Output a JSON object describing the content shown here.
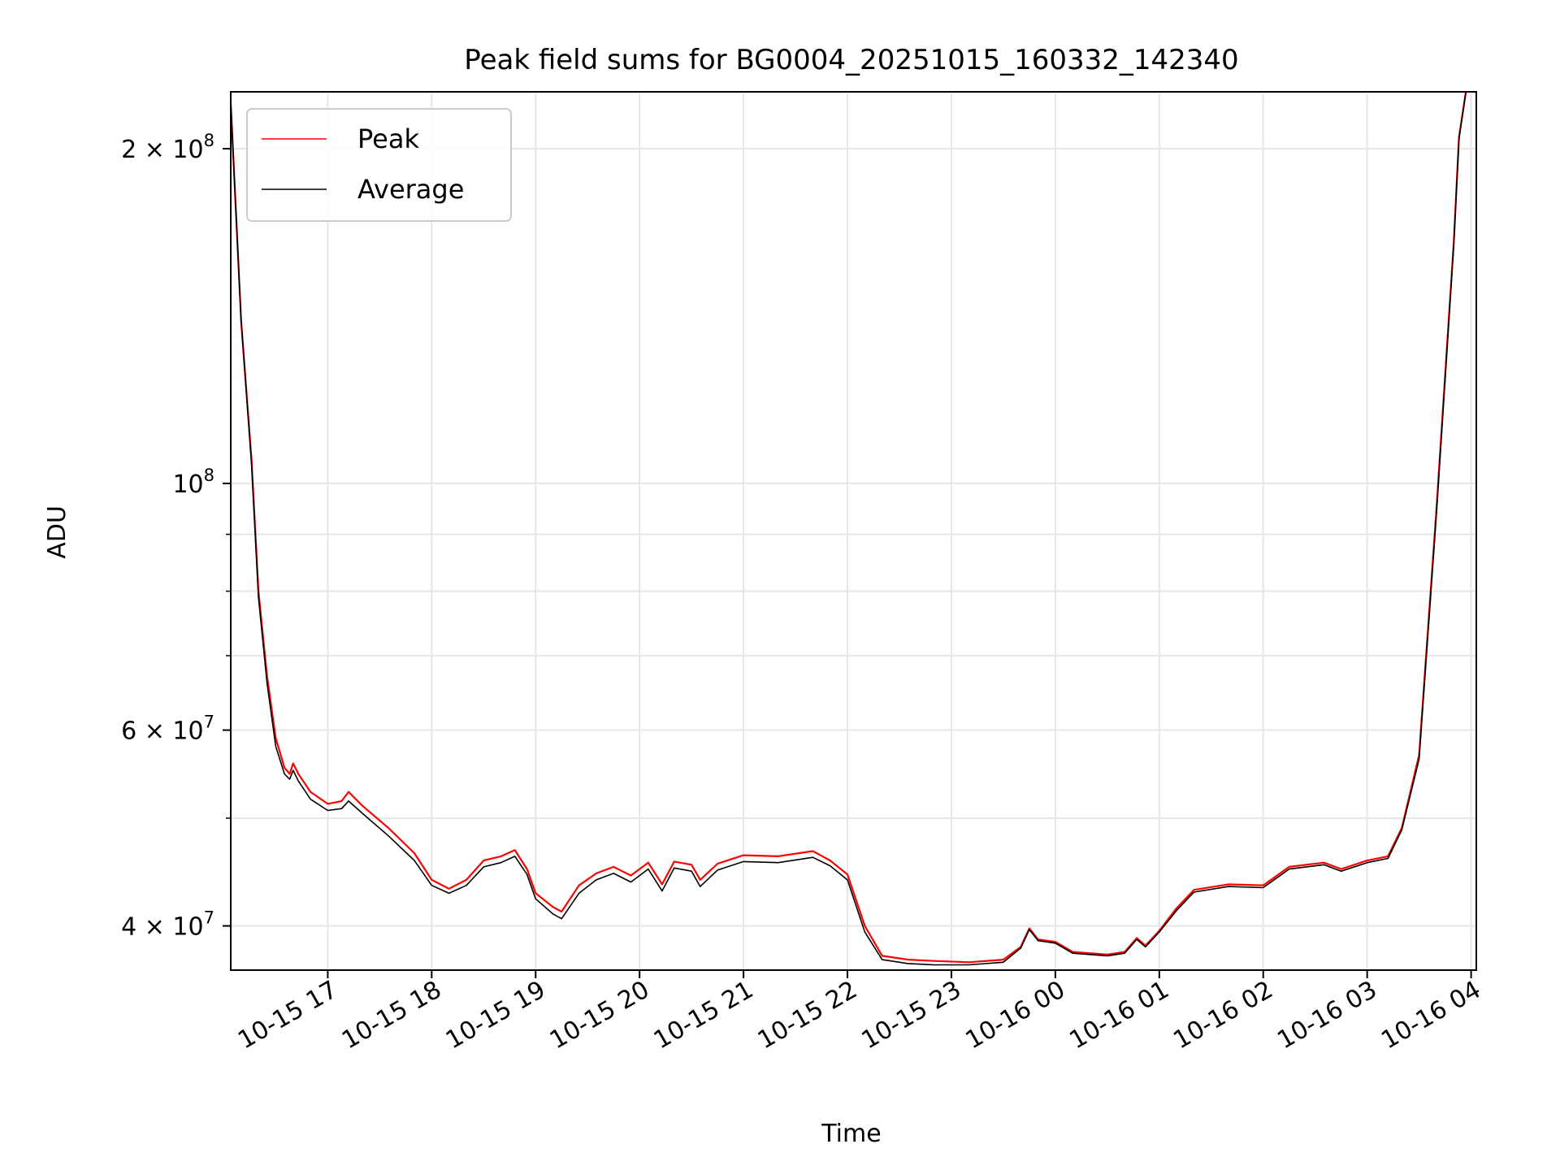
{
  "chart_data": {
    "type": "line",
    "title": "Peak field sums for BG0004_20251015_160332_142340",
    "xlabel": "Time",
    "ylabel": "ADU",
    "yscale": "log",
    "grid": true,
    "legend_position": "upper left",
    "xlim": [
      "2025-10-15T16:04",
      "2025-10-16T04:03"
    ],
    "ylim": [
      36500000,
      225000000
    ],
    "x_ticks": [
      {
        "t": "2025-10-15T17:00",
        "label": "10-15 17"
      },
      {
        "t": "2025-10-15T18:00",
        "label": "10-15 18"
      },
      {
        "t": "2025-10-15T19:00",
        "label": "10-15 19"
      },
      {
        "t": "2025-10-15T20:00",
        "label": "10-15 20"
      },
      {
        "t": "2025-10-15T21:00",
        "label": "10-15 21"
      },
      {
        "t": "2025-10-15T22:00",
        "label": "10-15 22"
      },
      {
        "t": "2025-10-15T23:00",
        "label": "10-15 23"
      },
      {
        "t": "2025-10-16T00:00",
        "label": "10-16 00"
      },
      {
        "t": "2025-10-16T01:00",
        "label": "10-16 01"
      },
      {
        "t": "2025-10-16T02:00",
        "label": "10-16 02"
      },
      {
        "t": "2025-10-16T03:00",
        "label": "10-16 03"
      },
      {
        "t": "2025-10-16T04:00",
        "label": "10-16 04"
      }
    ],
    "y_ticks_major": [
      {
        "v": 40000000,
        "label": "4 × 10",
        "exp": "7"
      },
      {
        "v": 60000000,
        "label": "6 × 10",
        "exp": "7"
      },
      {
        "v": 100000000,
        "label": "10",
        "exp": "8"
      },
      {
        "v": 200000000,
        "label": "2 × 10",
        "exp": "8"
      }
    ],
    "y_ticks_minor": [
      50000000,
      70000000,
      80000000,
      90000000
    ],
    "series": [
      {
        "name": "Peak",
        "color": "#ff0000",
        "data": [
          [
            "2025-10-15T16:04",
            220000000
          ],
          [
            "2025-10-15T16:10",
            140000000
          ],
          [
            "2025-10-15T16:16",
            105000000
          ],
          [
            "2025-10-15T16:20",
            80000000
          ],
          [
            "2025-10-15T16:25",
            67000000
          ],
          [
            "2025-10-15T16:30",
            59000000
          ],
          [
            "2025-10-15T16:35",
            55500000
          ],
          [
            "2025-10-15T16:38",
            54800000
          ],
          [
            "2025-10-15T16:40",
            56000000
          ],
          [
            "2025-10-15T16:43",
            54800000
          ],
          [
            "2025-10-15T16:50",
            52800000
          ],
          [
            "2025-10-15T17:00",
            51500000
          ],
          [
            "2025-10-15T17:08",
            51800000
          ],
          [
            "2025-10-15T17:12",
            52800000
          ],
          [
            "2025-10-15T17:20",
            51300000
          ],
          [
            "2025-10-15T17:35",
            49000000
          ],
          [
            "2025-10-15T17:50",
            46500000
          ],
          [
            "2025-10-15T18:00",
            44000000
          ],
          [
            "2025-10-15T18:10",
            43200000
          ],
          [
            "2025-10-15T18:20",
            44000000
          ],
          [
            "2025-10-15T18:30",
            45800000
          ],
          [
            "2025-10-15T18:40",
            46200000
          ],
          [
            "2025-10-15T18:48",
            46800000
          ],
          [
            "2025-10-15T18:55",
            45000000
          ],
          [
            "2025-10-15T19:00",
            42800000
          ],
          [
            "2025-10-15T19:10",
            41600000
          ],
          [
            "2025-10-15T19:15",
            41200000
          ],
          [
            "2025-10-15T19:25",
            43500000
          ],
          [
            "2025-10-15T19:35",
            44600000
          ],
          [
            "2025-10-15T19:45",
            45200000
          ],
          [
            "2025-10-15T19:55",
            44400000
          ],
          [
            "2025-10-15T20:05",
            45600000
          ],
          [
            "2025-10-15T20:13",
            43600000
          ],
          [
            "2025-10-15T20:20",
            45700000
          ],
          [
            "2025-10-15T20:30",
            45400000
          ],
          [
            "2025-10-15T20:35",
            44000000
          ],
          [
            "2025-10-15T20:45",
            45500000
          ],
          [
            "2025-10-15T21:00",
            46300000
          ],
          [
            "2025-10-15T21:20",
            46200000
          ],
          [
            "2025-10-15T21:40",
            46700000
          ],
          [
            "2025-10-15T21:50",
            45800000
          ],
          [
            "2025-10-15T22:00",
            44500000
          ],
          [
            "2025-10-15T22:10",
            40000000
          ],
          [
            "2025-10-15T22:20",
            37600000
          ],
          [
            "2025-10-15T22:35",
            37300000
          ],
          [
            "2025-10-15T22:50",
            37200000
          ],
          [
            "2025-10-15T23:10",
            37100000
          ],
          [
            "2025-10-15T23:30",
            37300000
          ],
          [
            "2025-10-15T23:40",
            38300000
          ],
          [
            "2025-10-15T23:45",
            39800000
          ],
          [
            "2025-10-15T23:50",
            38900000
          ],
          [
            "2025-10-16T00:00",
            38700000
          ],
          [
            "2025-10-16T00:10",
            37900000
          ],
          [
            "2025-10-16T00:30",
            37700000
          ],
          [
            "2025-10-16T00:40",
            37900000
          ],
          [
            "2025-10-16T00:47",
            39000000
          ],
          [
            "2025-10-16T00:52",
            38400000
          ],
          [
            "2025-10-16T01:00",
            39600000
          ],
          [
            "2025-10-16T01:10",
            41500000
          ],
          [
            "2025-10-16T01:20",
            43100000
          ],
          [
            "2025-10-16T01:40",
            43600000
          ],
          [
            "2025-10-16T02:00",
            43500000
          ],
          [
            "2025-10-16T02:15",
            45200000
          ],
          [
            "2025-10-16T02:35",
            45600000
          ],
          [
            "2025-10-16T02:45",
            45000000
          ],
          [
            "2025-10-16T03:00",
            45800000
          ],
          [
            "2025-10-16T03:12",
            46200000
          ],
          [
            "2025-10-16T03:20",
            49000000
          ],
          [
            "2025-10-16T03:30",
            57000000
          ],
          [
            "2025-10-16T03:40",
            95000000
          ],
          [
            "2025-10-16T03:50",
            165000000
          ],
          [
            "2025-10-16T03:53",
            205000000
          ],
          [
            "2025-10-16T03:57",
            225000000
          ]
        ]
      },
      {
        "name": "Average",
        "color": "#000000",
        "data": [
          [
            "2025-10-15T16:04",
            220000000
          ],
          [
            "2025-10-15T16:10",
            140000000
          ],
          [
            "2025-10-15T16:16",
            104000000
          ],
          [
            "2025-10-15T16:20",
            79000000
          ],
          [
            "2025-10-15T16:25",
            66000000
          ],
          [
            "2025-10-15T16:30",
            58000000
          ],
          [
            "2025-10-15T16:35",
            54800000
          ],
          [
            "2025-10-15T16:38",
            54200000
          ],
          [
            "2025-10-15T16:40",
            55200000
          ],
          [
            "2025-10-15T16:43",
            54000000
          ],
          [
            "2025-10-15T16:50",
            52000000
          ],
          [
            "2025-10-15T17:00",
            50800000
          ],
          [
            "2025-10-15T17:08",
            51000000
          ],
          [
            "2025-10-15T17:12",
            51800000
          ],
          [
            "2025-10-15T17:20",
            50500000
          ],
          [
            "2025-10-15T17:35",
            48200000
          ],
          [
            "2025-10-15T17:50",
            45800000
          ],
          [
            "2025-10-15T18:00",
            43500000
          ],
          [
            "2025-10-15T18:10",
            42800000
          ],
          [
            "2025-10-15T18:20",
            43500000
          ],
          [
            "2025-10-15T18:30",
            45200000
          ],
          [
            "2025-10-15T18:40",
            45600000
          ],
          [
            "2025-10-15T18:48",
            46200000
          ],
          [
            "2025-10-15T18:55",
            44500000
          ],
          [
            "2025-10-15T19:00",
            42300000
          ],
          [
            "2025-10-15T19:10",
            41000000
          ],
          [
            "2025-10-15T19:15",
            40600000
          ],
          [
            "2025-10-15T19:25",
            42800000
          ],
          [
            "2025-10-15T19:35",
            44000000
          ],
          [
            "2025-10-15T19:45",
            44600000
          ],
          [
            "2025-10-15T19:55",
            43800000
          ],
          [
            "2025-10-15T20:05",
            45000000
          ],
          [
            "2025-10-15T20:13",
            43000000
          ],
          [
            "2025-10-15T20:20",
            45100000
          ],
          [
            "2025-10-15T20:30",
            44800000
          ],
          [
            "2025-10-15T20:35",
            43400000
          ],
          [
            "2025-10-15T20:45",
            44900000
          ],
          [
            "2025-10-15T21:00",
            45700000
          ],
          [
            "2025-10-15T21:20",
            45600000
          ],
          [
            "2025-10-15T21:40",
            46100000
          ],
          [
            "2025-10-15T21:50",
            45300000
          ],
          [
            "2025-10-15T22:00",
            44000000
          ],
          [
            "2025-10-15T22:10",
            39500000
          ],
          [
            "2025-10-15T22:20",
            37300000
          ],
          [
            "2025-10-15T22:35",
            37000000
          ],
          [
            "2025-10-15T22:50",
            36900000
          ],
          [
            "2025-10-15T23:10",
            36900000
          ],
          [
            "2025-10-15T23:30",
            37100000
          ],
          [
            "2025-10-15T23:40",
            38200000
          ],
          [
            "2025-10-15T23:45",
            39700000
          ],
          [
            "2025-10-15T23:50",
            38800000
          ],
          [
            "2025-10-16T00:00",
            38600000
          ],
          [
            "2025-10-16T00:10",
            37800000
          ],
          [
            "2025-10-16T00:30",
            37600000
          ],
          [
            "2025-10-16T00:40",
            37800000
          ],
          [
            "2025-10-16T00:47",
            38900000
          ],
          [
            "2025-10-16T00:52",
            38300000
          ],
          [
            "2025-10-16T01:00",
            39500000
          ],
          [
            "2025-10-16T01:10",
            41300000
          ],
          [
            "2025-10-16T01:20",
            42900000
          ],
          [
            "2025-10-16T01:40",
            43400000
          ],
          [
            "2025-10-16T02:00",
            43300000
          ],
          [
            "2025-10-16T02:15",
            45000000
          ],
          [
            "2025-10-16T02:35",
            45400000
          ],
          [
            "2025-10-16T02:45",
            44800000
          ],
          [
            "2025-10-16T03:00",
            45600000
          ],
          [
            "2025-10-16T03:12",
            46000000
          ],
          [
            "2025-10-16T03:20",
            48800000
          ],
          [
            "2025-10-16T03:30",
            56500000
          ],
          [
            "2025-10-16T03:40",
            94000000
          ],
          [
            "2025-10-16T03:50",
            164000000
          ],
          [
            "2025-10-16T03:53",
            204000000
          ],
          [
            "2025-10-16T03:57",
            225000000
          ]
        ]
      }
    ]
  }
}
